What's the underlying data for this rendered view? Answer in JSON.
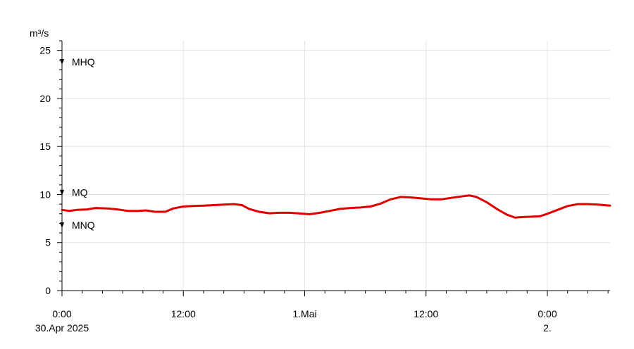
{
  "chart_data": {
    "type": "line",
    "ylabel": "m³/s",
    "ylim": [
      0,
      26
    ],
    "xlim_hours": [
      0,
      54.2
    ],
    "grid": true,
    "y_ticks": [
      0,
      5,
      10,
      15,
      20,
      25
    ],
    "y_tick_labels": [
      "0",
      "5",
      "10",
      "15",
      "20",
      "25"
    ],
    "x_ticks": [
      {
        "hour": 0,
        "label": "0:00",
        "sublabel": "30.Apr 2025"
      },
      {
        "hour": 12,
        "label": "12:00",
        "sublabel": ""
      },
      {
        "hour": 24,
        "label": "1.Mai",
        "sublabel": ""
      },
      {
        "hour": 36,
        "label": "12:00",
        "sublabel": ""
      },
      {
        "hour": 48,
        "label": "0:00",
        "sublabel": "2."
      }
    ],
    "reference_levels": [
      {
        "name": "MHQ",
        "value": 23.8
      },
      {
        "name": "MQ",
        "value": 10.2
      },
      {
        "name": "MNQ",
        "value": 6.8
      }
    ],
    "series": [
      {
        "color": "#e00000",
        "points": [
          [
            0,
            8.4
          ],
          [
            0.7,
            8.3
          ],
          [
            1.5,
            8.4
          ],
          [
            2.5,
            8.45
          ],
          [
            3.3,
            8.6
          ],
          [
            4.5,
            8.55
          ],
          [
            5.5,
            8.45
          ],
          [
            6.5,
            8.3
          ],
          [
            7.5,
            8.3
          ],
          [
            8.3,
            8.35
          ],
          [
            9.2,
            8.2
          ],
          [
            10.2,
            8.2
          ],
          [
            11.0,
            8.55
          ],
          [
            12.0,
            8.75
          ],
          [
            13.0,
            8.8
          ],
          [
            14.0,
            8.85
          ],
          [
            15.0,
            8.9
          ],
          [
            16.0,
            8.95
          ],
          [
            17.0,
            9.0
          ],
          [
            17.8,
            8.9
          ],
          [
            18.5,
            8.5
          ],
          [
            19.5,
            8.2
          ],
          [
            20.5,
            8.05
          ],
          [
            21.5,
            8.1
          ],
          [
            22.5,
            8.1
          ],
          [
            23.3,
            8.05
          ],
          [
            24.5,
            7.95
          ],
          [
            25.5,
            8.1
          ],
          [
            26.5,
            8.3
          ],
          [
            27.5,
            8.5
          ],
          [
            28.5,
            8.6
          ],
          [
            29.5,
            8.65
          ],
          [
            30.5,
            8.75
          ],
          [
            31.5,
            9.05
          ],
          [
            32.5,
            9.5
          ],
          [
            33.5,
            9.75
          ],
          [
            34.5,
            9.7
          ],
          [
            35.5,
            9.6
          ],
          [
            36.5,
            9.5
          ],
          [
            37.5,
            9.5
          ],
          [
            38.5,
            9.65
          ],
          [
            39.5,
            9.8
          ],
          [
            40.3,
            9.9
          ],
          [
            41.0,
            9.75
          ],
          [
            42.0,
            9.2
          ],
          [
            43.0,
            8.5
          ],
          [
            44.0,
            7.9
          ],
          [
            44.8,
            7.6
          ],
          [
            45.5,
            7.65
          ],
          [
            46.5,
            7.7
          ],
          [
            47.3,
            7.75
          ],
          [
            48.0,
            8.0
          ],
          [
            49.0,
            8.4
          ],
          [
            50.0,
            8.8
          ],
          [
            51.0,
            9.0
          ],
          [
            52.0,
            9.0
          ],
          [
            53.0,
            8.95
          ],
          [
            54.2,
            8.85
          ]
        ]
      }
    ]
  }
}
